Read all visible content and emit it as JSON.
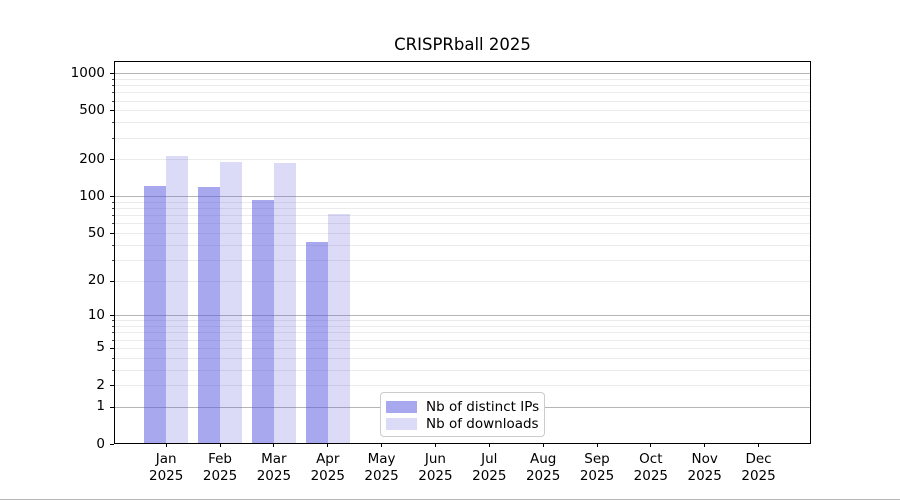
{
  "title": "CRISPRball 2025",
  "chart_data": {
    "type": "bar",
    "title": "CRISPRball 2025",
    "months": [
      "Jan",
      "Feb",
      "Mar",
      "Apr",
      "May",
      "Jun",
      "Jul",
      "Aug",
      "Sep",
      "Oct",
      "Nov",
      "Dec"
    ],
    "year": "2025",
    "series": [
      {
        "name": "Nb of distinct IPs",
        "color": "rgba(85,85,224,0.51)",
        "values": [
          120,
          118,
          91,
          41,
          0,
          0,
          0,
          0,
          0,
          0,
          0,
          0
        ]
      },
      {
        "name": "Nb of downloads",
        "color": "rgba(85,85,224,0.21)",
        "values": [
          208,
          188,
          185,
          70,
          0,
          0,
          0,
          0,
          0,
          0,
          0,
          0
        ]
      }
    ],
    "xlabel": "",
    "ylabel": "",
    "yscale": "symlog (position proportional to log10(value+1))",
    "yticks": [
      0,
      1,
      2,
      5,
      10,
      20,
      50,
      100,
      200,
      500,
      1000
    ],
    "major_gridlines": [
      1,
      10,
      100,
      1000
    ],
    "minor_gridline_subs": [
      2,
      3,
      4,
      5,
      6,
      7,
      8,
      9
    ],
    "ylim": [
      0,
      1250
    ],
    "grid": "both",
    "legend_position": "lower center"
  },
  "legend": {
    "items": [
      {
        "label": "Nb of distinct IPs",
        "color": "rgba(85,85,224,0.51)"
      },
      {
        "label": "Nb of downloads",
        "color": "rgba(85,85,224,0.21)"
      }
    ]
  },
  "colors": {
    "background": "#ffffff",
    "spine": "#000000",
    "major_grid": "#b5b5b5",
    "minor_grid": "#ebebeb",
    "text": "#000000",
    "legend_border": "#cccccc",
    "bar_distinct_ips_over_white": "#a8a8f4",
    "bar_downloads_over_white": "#dbdbfa"
  }
}
